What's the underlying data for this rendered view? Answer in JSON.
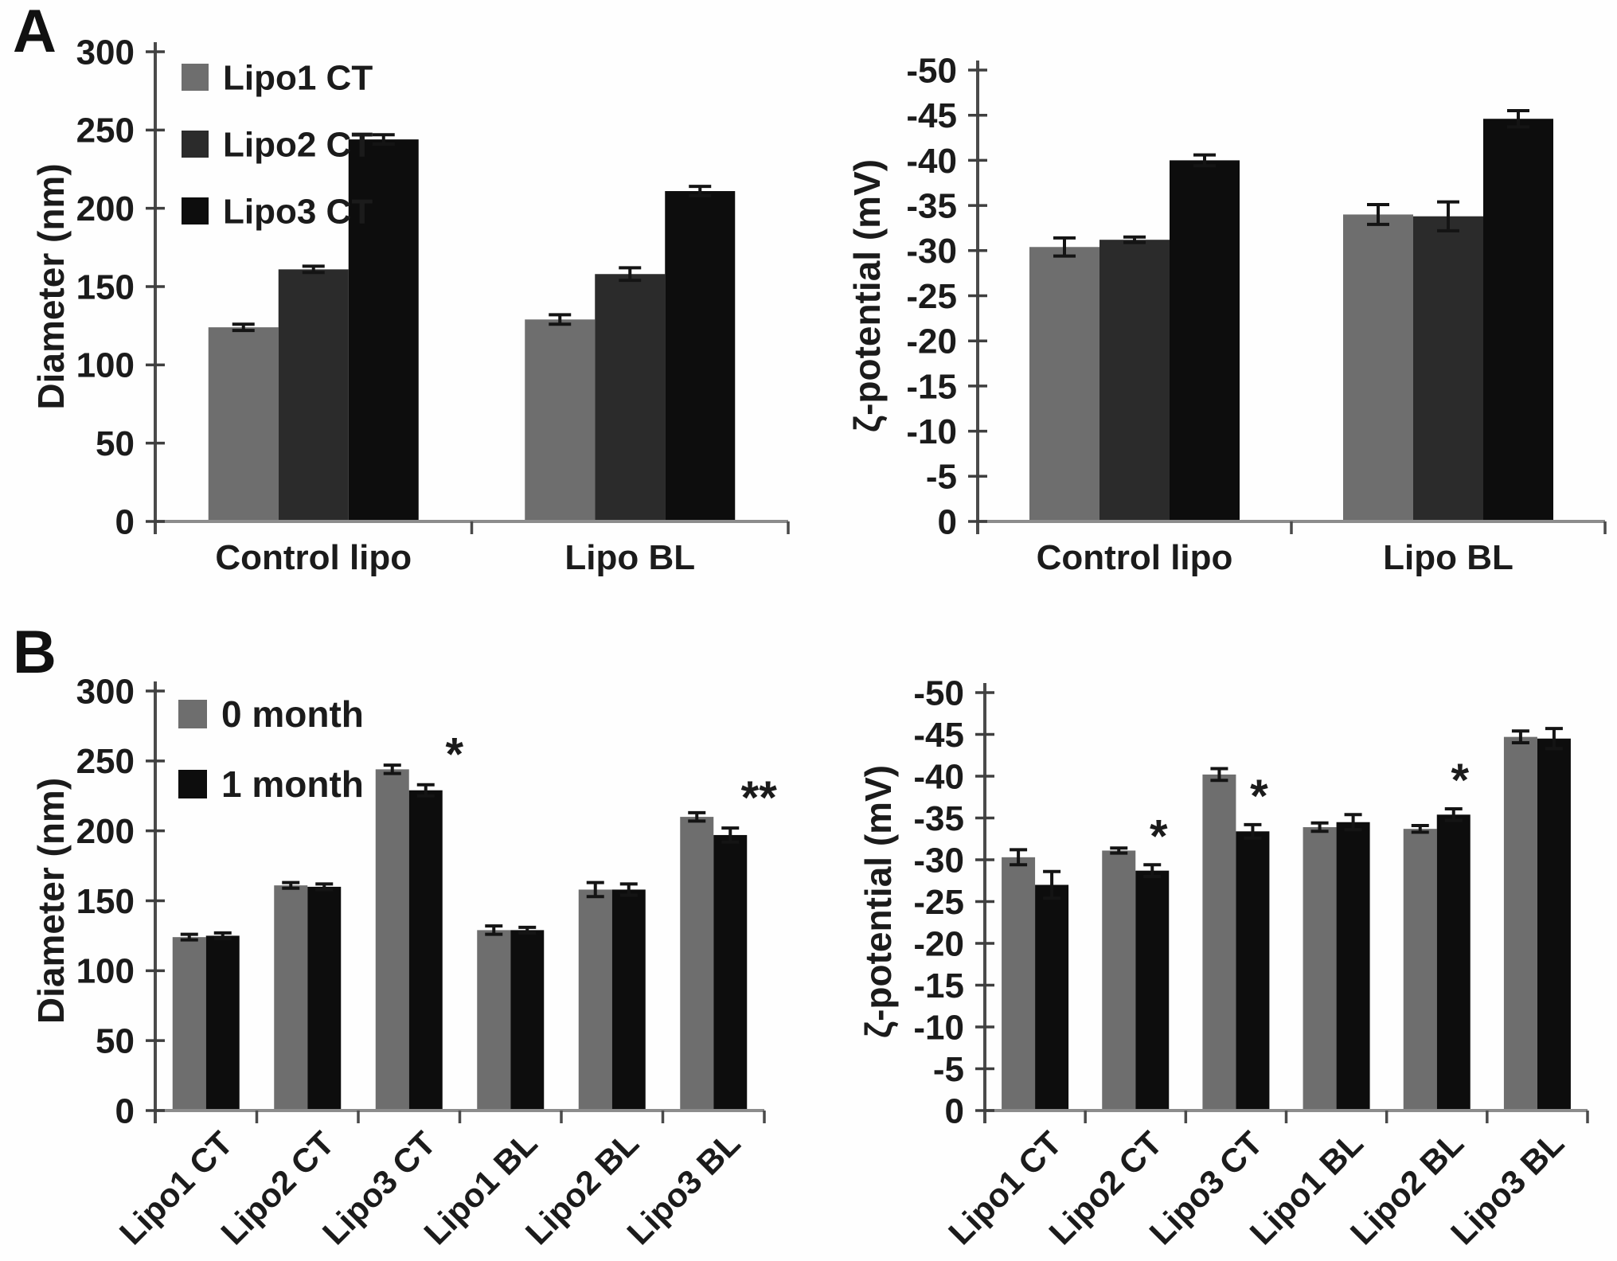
{
  "panels": {
    "a": "A",
    "b": "B"
  },
  "colors": {
    "series_gray": "#6e6e6e",
    "series_darkgray": "#2b2b2b",
    "series_black": "#0d0d0d",
    "axis": "#4a4a4a",
    "baseline": "#8c8c8c",
    "text": "#1b1b1b"
  },
  "chart_data": [
    {
      "id": "panel-a-diameter",
      "panel": "A",
      "type": "bar",
      "title": "",
      "xlabel": "",
      "ylabel": "Diameter (nm)",
      "ylim": [
        0,
        300
      ],
      "yticks": [
        0,
        50,
        100,
        150,
        200,
        250,
        300
      ],
      "grid": false,
      "categories": [
        "Control lipo",
        "Lipo BL"
      ],
      "series": [
        {
          "name": "Lipo1 CT",
          "color": "#6e6e6e",
          "values": [
            124,
            129
          ],
          "errors": [
            2,
            3
          ]
        },
        {
          "name": "Lipo2 CT",
          "color": "#2b2b2b",
          "values": [
            161,
            158
          ],
          "errors": [
            2,
            4
          ]
        },
        {
          "name": "Lipo3 CT",
          "color": "#0d0d0d",
          "values": [
            244,
            211
          ],
          "errors": [
            3,
            3
          ]
        }
      ],
      "legend": {
        "show": true,
        "position": "top-left"
      },
      "xlabels_rotated": false,
      "annotations": []
    },
    {
      "id": "panel-a-zeta",
      "panel": "A",
      "type": "bar",
      "title": "",
      "xlabel": "",
      "ylabel": "ζ-potential (mV)",
      "ylim": [
        0,
        -50
      ],
      "yticks": [
        0,
        -5,
        -10,
        -15,
        -20,
        -25,
        -30,
        -35,
        -40,
        -45,
        -50
      ],
      "grid": false,
      "categories": [
        "Control lipo",
        "Lipo BL"
      ],
      "series": [
        {
          "name": "Lipo1 CT",
          "color": "#6e6e6e",
          "values": [
            -30.4,
            -34.0
          ],
          "errors": [
            1.0,
            1.1
          ]
        },
        {
          "name": "Lipo2 CT",
          "color": "#2b2b2b",
          "values": [
            -31.2,
            -33.8
          ],
          "errors": [
            0.3,
            1.6
          ]
        },
        {
          "name": "Lipo3 CT",
          "color": "#0d0d0d",
          "values": [
            -40.0,
            -44.6
          ],
          "errors": [
            0.6,
            0.9
          ]
        }
      ],
      "legend": {
        "show": false,
        "position": "none"
      },
      "xlabels_rotated": false,
      "annotations": []
    },
    {
      "id": "panel-b-diameter",
      "panel": "B",
      "type": "bar",
      "title": "",
      "xlabel": "",
      "ylabel": "Diameter (nm)",
      "ylim": [
        0,
        300
      ],
      "yticks": [
        0,
        50,
        100,
        150,
        200,
        250,
        300
      ],
      "grid": false,
      "categories": [
        "Lipo1 CT",
        "Lipo2 CT",
        "Lipo3 CT",
        "Lipo1 BL",
        "Lipo2 BL",
        "Lipo3 BL"
      ],
      "series": [
        {
          "name": "0 month",
          "color": "#6e6e6e",
          "values": [
            124,
            161,
            244,
            129,
            158,
            210
          ],
          "errors": [
            2,
            2,
            3,
            3,
            5,
            3
          ]
        },
        {
          "name": "1 month",
          "color": "#0d0d0d",
          "values": [
            125,
            160,
            229,
            129,
            158,
            197
          ],
          "errors": [
            2,
            2,
            4,
            2,
            4,
            5
          ]
        }
      ],
      "legend": {
        "show": true,
        "position": "top-left"
      },
      "xlabels_rotated": true,
      "annotations": [
        {
          "category": "Lipo3 CT",
          "series": "1 month",
          "text": "*",
          "placement": "right"
        },
        {
          "category": "Lipo3 BL",
          "series": "1 month",
          "text": "**",
          "placement": "right"
        }
      ]
    },
    {
      "id": "panel-b-zeta",
      "panel": "B",
      "type": "bar",
      "title": "",
      "xlabel": "",
      "ylabel": "ζ-potential (mV)",
      "ylim": [
        0,
        -50
      ],
      "yticks": [
        0,
        -5,
        -10,
        -15,
        -20,
        -25,
        -30,
        -35,
        -40,
        -45,
        -50
      ],
      "grid": false,
      "categories": [
        "Lipo1 CT",
        "Lipo2 CT",
        "Lipo3 CT",
        "Lipo1 BL",
        "Lipo2 BL",
        "Lipo3 BL"
      ],
      "series": [
        {
          "name": "0 month",
          "color": "#6e6e6e",
          "values": [
            -30.3,
            -31.1,
            -40.2,
            -33.9,
            -33.7,
            -44.7
          ],
          "errors": [
            0.9,
            0.3,
            0.7,
            0.5,
            0.4,
            0.7
          ]
        },
        {
          "name": "1 month",
          "color": "#0d0d0d",
          "values": [
            -27.0,
            -28.7,
            -33.4,
            -34.5,
            -35.4,
            -44.5
          ],
          "errors": [
            1.6,
            0.7,
            0.8,
            0.9,
            0.7,
            1.2
          ]
        }
      ],
      "legend": {
        "show": false,
        "position": "none"
      },
      "xlabels_rotated": true,
      "annotations": [
        {
          "category": "Lipo2 CT",
          "series": "1 month",
          "text": "*",
          "placement": "above"
        },
        {
          "category": "Lipo3 CT",
          "series": "1 month",
          "text": "*",
          "placement": "above"
        },
        {
          "category": "Lipo2 BL",
          "series": "1 month",
          "text": "*",
          "placement": "above"
        }
      ]
    }
  ]
}
